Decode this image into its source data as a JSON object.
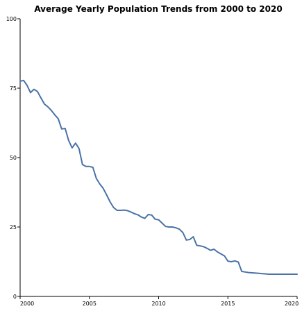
{
  "chart_data": {
    "type": "line",
    "title": "Average Yearly Population Trends from 2000 to 2020",
    "xlabel": "",
    "ylabel": "",
    "xlim": [
      2000,
      2020
    ],
    "ylim": [
      0,
      100
    ],
    "x_ticks": [
      "2000",
      "2005",
      "2010",
      "2015",
      "2020"
    ],
    "y_ticks": [
      "0",
      "25",
      "50",
      "75",
      "100"
    ],
    "grid": false,
    "colors": {
      "line": "#4a72a6"
    },
    "series": [
      {
        "x": [
          2000.0,
          2000.25,
          2000.5,
          2000.75,
          2001.0,
          2001.25,
          2001.5,
          2001.75,
          2002.0,
          2002.25,
          2002.5,
          2002.75,
          2003.0,
          2003.25,
          2003.5,
          2003.75,
          2004.0,
          2004.25,
          2004.5,
          2004.75,
          2005.0,
          2005.25,
          2005.5,
          2005.75,
          2006.0,
          2006.25,
          2006.5,
          2006.75,
          2007.0,
          2007.25,
          2007.5,
          2007.75,
          2008.0,
          2008.25,
          2008.5,
          2008.75,
          2009.0,
          2009.25,
          2009.5,
          2009.75,
          2010.0,
          2010.25,
          2010.5,
          2010.75,
          2011.0,
          2011.25,
          2011.5,
          2011.75,
          2012.0,
          2012.25,
          2012.5,
          2012.75,
          2013.0,
          2013.25,
          2013.5,
          2013.75,
          2014.0,
          2014.25,
          2014.5,
          2014.75,
          2015.0,
          2015.25,
          2015.5,
          2015.75,
          2016.0,
          2016.25,
          2016.5,
          2016.75,
          2017.0,
          2017.25,
          2017.5,
          2017.75,
          2018.0,
          2018.25,
          2018.5,
          2018.75,
          2019.0,
          2019.25,
          2019.5,
          2019.75,
          2020.0
        ],
        "values": [
          77.5,
          77.8,
          76.0,
          73.4,
          74.6,
          73.8,
          71.5,
          69.3,
          68.3,
          67.0,
          65.4,
          64.0,
          60.3,
          60.5,
          56.2,
          53.5,
          55.2,
          53.3,
          47.5,
          46.8,
          46.8,
          46.5,
          42.5,
          40.5,
          38.9,
          36.5,
          34.0,
          32.0,
          31.0,
          31.0,
          31.1,
          30.9,
          30.4,
          29.8,
          29.4,
          28.6,
          28.1,
          29.5,
          29.3,
          27.8,
          27.6,
          26.4,
          25.2,
          25.0,
          25.0,
          24.7,
          24.2,
          23.0,
          20.3,
          20.5,
          21.5,
          18.4,
          18.2,
          17.9,
          17.3,
          16.6,
          17.0,
          16.0,
          15.3,
          14.6,
          12.7,
          12.5,
          12.8,
          12.4,
          9.0,
          8.8,
          8.6,
          8.5,
          8.4,
          8.3,
          8.2,
          8.1,
          8.0,
          8.0,
          8.0,
          8.0,
          8.0,
          8.0,
          8.0,
          8.0,
          8.0
        ]
      }
    ]
  }
}
